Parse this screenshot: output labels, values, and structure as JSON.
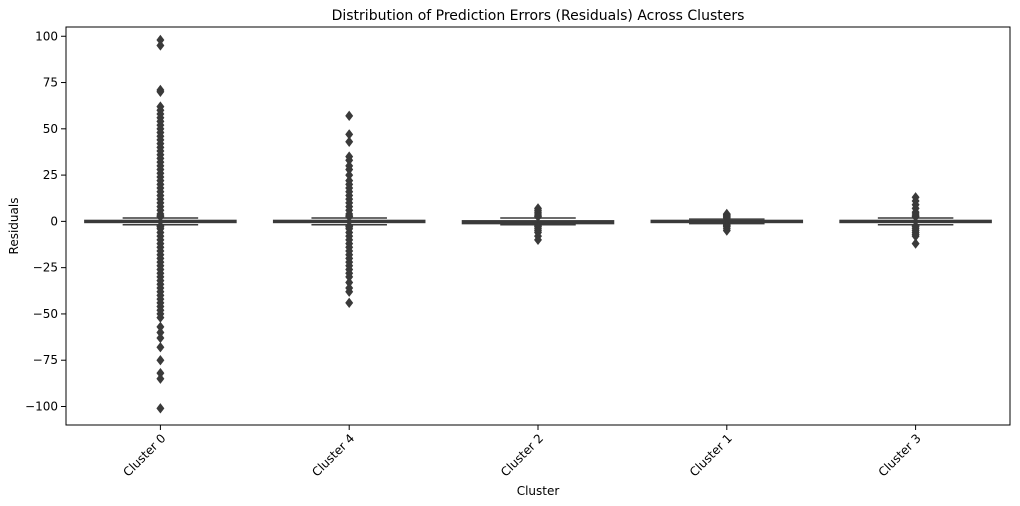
{
  "chart_data": {
    "type": "box",
    "title": "Distribution of Prediction Errors (Residuals) Across Clusters",
    "xlabel": "Cluster",
    "ylabel": "Residuals",
    "ylim": [
      -110,
      105
    ],
    "yticks": [
      -100,
      -75,
      -50,
      -25,
      0,
      25,
      50,
      75,
      100
    ],
    "grid": false,
    "legend": "none",
    "box_color": "#3a3a3a",
    "categories": [
      "Cluster 0",
      "Cluster 4",
      "Cluster 2",
      "Cluster 1",
      "Cluster 3"
    ],
    "series": [
      {
        "category": "Cluster 0",
        "q1": -0.5,
        "median": 0,
        "q3": 0.5,
        "whisker_low": -1.8,
        "whisker_high": 1.8,
        "outliers": [
          98,
          95,
          71,
          70,
          62,
          60,
          58,
          56,
          54,
          52,
          50,
          48,
          46,
          44,
          42,
          40,
          38,
          36,
          34,
          32,
          30,
          28,
          26,
          24,
          22,
          20,
          18,
          16,
          14,
          12,
          10,
          8,
          6,
          4,
          3,
          2.5,
          -2.5,
          -3,
          -4,
          -6,
          -8,
          -10,
          -12,
          -14,
          -16,
          -18,
          -20,
          -22,
          -24,
          -26,
          -28,
          -30,
          -32,
          -34,
          -36,
          -38,
          -40,
          -42,
          -44,
          -46,
          -48,
          -50,
          -52,
          -57,
          -60,
          -63,
          -68,
          -75,
          -82,
          -85,
          -101
        ]
      },
      {
        "category": "Cluster 4",
        "q1": -0.5,
        "median": 0,
        "q3": 0.5,
        "whisker_low": -1.8,
        "whisker_high": 1.8,
        "outliers": [
          57,
          47,
          43,
          35,
          33,
          30,
          28,
          25,
          22,
          20,
          18,
          16,
          14,
          12,
          10,
          8,
          6,
          4,
          3,
          2.5,
          -2.5,
          -3,
          -4,
          -6,
          -8,
          -10,
          -12,
          -14,
          -16,
          -18,
          -20,
          -22,
          -24,
          -26,
          -28,
          -30,
          -33,
          -36,
          -38,
          -44
        ]
      },
      {
        "category": "Cluster 2",
        "q1": -1.2,
        "median": -0.5,
        "q3": 0.3,
        "whisker_low": -1.8,
        "whisker_high": 1.8,
        "outliers": [
          7,
          6,
          5,
          4,
          3,
          2.5,
          -2.5,
          -3,
          -4,
          -5,
          -6,
          -8,
          -10
        ]
      },
      {
        "category": "Cluster 1",
        "q1": -0.5,
        "median": 0,
        "q3": 0.5,
        "whisker_low": -1.2,
        "whisker_high": 1.2,
        "outliers": [
          4,
          3.5,
          3,
          2.5,
          2,
          1.5,
          -1.5,
          -2,
          -2.5,
          -3,
          -4,
          -5
        ]
      },
      {
        "category": "Cluster 3",
        "q1": -0.5,
        "median": 0,
        "q3": 0.5,
        "whisker_low": -1.8,
        "whisker_high": 1.8,
        "outliers": [
          13,
          11,
          9,
          7,
          5,
          4,
          3,
          2.5,
          -2.5,
          -3,
          -4,
          -5,
          -6,
          -7,
          -8,
          -12
        ]
      }
    ]
  }
}
